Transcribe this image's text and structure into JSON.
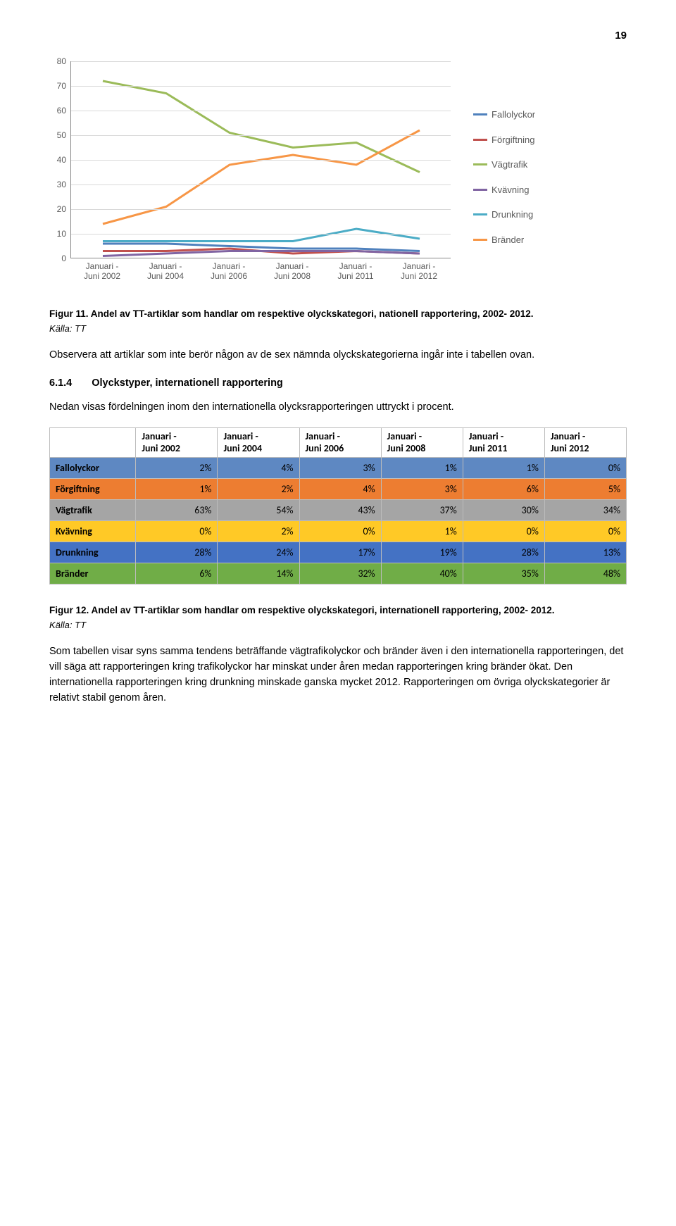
{
  "page_number": "19",
  "chart": {
    "type": "line",
    "ylim": [
      0,
      80
    ],
    "ytick_step": 10,
    "yticks": [
      0,
      10,
      20,
      30,
      40,
      50,
      60,
      70,
      80
    ],
    "categories": [
      "Januari - Juni 2002",
      "Januari - Juni 2004",
      "Januari - Juni 2006",
      "Januari - Juni 2008",
      "Januari - Juni 2011",
      "Januari - Juni 2012"
    ],
    "grid_color": "#d9d9d9",
    "axis_color": "#888888",
    "label_color": "#595959",
    "label_fontsize": 12,
    "line_width": 3,
    "series": [
      {
        "name": "Fallolyckor",
        "color": "#4f81bd",
        "values": [
          6,
          6,
          5,
          4,
          4,
          3
        ]
      },
      {
        "name": "Förgiftning",
        "color": "#c0504d",
        "values": [
          3,
          3,
          4,
          2,
          3,
          2
        ]
      },
      {
        "name": "Vägtrafik",
        "color": "#9bbb59",
        "values": [
          72,
          67,
          51,
          45,
          47,
          35
        ]
      },
      {
        "name": "Kvävning",
        "color": "#8064a2",
        "values": [
          1,
          2,
          3,
          3,
          3,
          2
        ]
      },
      {
        "name": "Drunkning",
        "color": "#4bacc6",
        "values": [
          7,
          7,
          7,
          7,
          12,
          8
        ]
      },
      {
        "name": "Bränder",
        "color": "#f79646",
        "values": [
          14,
          21,
          38,
          42,
          38,
          52
        ]
      }
    ]
  },
  "fig11_caption": "Figur 11. Andel av TT-artiklar som handlar om respektive olyckskategori, nationell rapportering, 2002- 2012.",
  "fig11_source": "Källa: TT",
  "para1": "Observera att artiklar som inte berör någon av de sex nämnda olyckskategorierna ingår inte i tabellen ovan.",
  "section_num": "6.1.4",
  "section_title": "Olyckstyper, internationell rapportering",
  "para2": "Nedan visas fördelningen inom den internationella olycksrapporteringen uttryckt i procent.",
  "table": {
    "columns": [
      "",
      "Januari - Juni 2002",
      "Januari - Juni 2004",
      "Januari - Juni 2006",
      "Januari - Juni 2008",
      "Januari - Juni 2011",
      "Januari - Juni 2012"
    ],
    "rows": [
      {
        "label": "Fallolyckor",
        "color": "#5e88c2",
        "values": [
          "2%",
          "4%",
          "3%",
          "1%",
          "1%",
          "0%"
        ]
      },
      {
        "label": "Förgiftning",
        "color": "#ed7d31",
        "values": [
          "1%",
          "2%",
          "4%",
          "3%",
          "6%",
          "5%"
        ]
      },
      {
        "label": "Vägtrafik",
        "color": "#a5a5a5",
        "values": [
          "63%",
          "54%",
          "43%",
          "37%",
          "30%",
          "34%"
        ]
      },
      {
        "label": "Kvävning",
        "color": "#ffc926",
        "values": [
          "0%",
          "2%",
          "0%",
          "1%",
          "0%",
          "0%"
        ]
      },
      {
        "label": "Drunkning",
        "color": "#4472c4",
        "values": [
          "28%",
          "24%",
          "17%",
          "19%",
          "28%",
          "13%"
        ]
      },
      {
        "label": "Bränder",
        "color": "#70ad47",
        "values": [
          "6%",
          "14%",
          "32%",
          "40%",
          "35%",
          "48%"
        ]
      }
    ]
  },
  "fig12_caption": "Figur 12. Andel av TT-artiklar som handlar om respektive olyckskategori, internationell rapportering, 2002- 2012.",
  "fig12_source": "Källa: TT",
  "para3": "Som tabellen visar syns samma tendens beträffande vägtrafikolyckor och bränder även i den internationella rapporteringen, det vill säga att rapporteringen kring trafikolyckor har minskat under åren medan rapporteringen kring bränder ökat. Den internationella rapporteringen kring drunkning minskade ganska mycket 2012. Rapporteringen om övriga olyckskategorier är relativt stabil genom åren."
}
